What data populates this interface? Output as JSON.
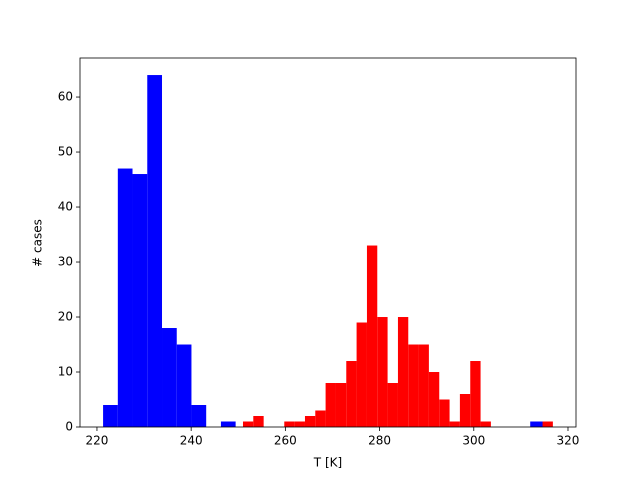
{
  "chart_data": {
    "type": "histogram",
    "x_label": "T [K]",
    "y_label": "# cases",
    "xlim": [
      216.4,
      321.7
    ],
    "ylim": [
      0,
      67.1
    ],
    "xticks": [
      220,
      240,
      260,
      280,
      300,
      320
    ],
    "yticks": [
      0,
      10,
      20,
      30,
      40,
      50,
      60
    ],
    "series": [
      {
        "color": "#0000ff",
        "bins": [
          221.3,
          224.43,
          227.55,
          230.68,
          233.81,
          236.94,
          240.06,
          243.19,
          246.32,
          249.44,
          252.57,
          255.7,
          258.82,
          261.95,
          265.08,
          268.21,
          271.33,
          274.46,
          277.59,
          280.71,
          283.84,
          286.97,
          290.09,
          293.22,
          296.35,
          299.48,
          302.6,
          305.73,
          308.86,
          311.98,
          315.11
        ],
        "values": [
          4,
          47,
          46,
          64,
          18,
          15,
          4,
          0,
          1,
          0,
          0,
          0,
          0,
          0,
          0,
          0,
          0,
          0,
          0,
          0,
          0,
          0,
          0,
          0,
          0,
          0,
          0,
          0,
          0,
          1
        ]
      },
      {
        "color": "#ff0000",
        "bins": [
          251.0,
          253.19,
          255.39,
          257.58,
          259.77,
          261.97,
          264.16,
          266.35,
          268.54,
          270.74,
          272.93,
          275.12,
          277.32,
          279.51,
          281.7,
          283.9,
          286.09,
          288.28,
          290.47,
          292.67,
          294.86,
          297.05,
          299.25,
          301.44,
          303.63,
          305.83,
          308.02,
          310.21,
          312.4,
          314.6,
          316.79
        ],
        "values": [
          1,
          2,
          0,
          0,
          1,
          1,
          2,
          3,
          8,
          8,
          12,
          19,
          33,
          20,
          8,
          20,
          15,
          15,
          10,
          5,
          1,
          6,
          12,
          1,
          0,
          0,
          0,
          0,
          0,
          1
        ]
      }
    ]
  }
}
